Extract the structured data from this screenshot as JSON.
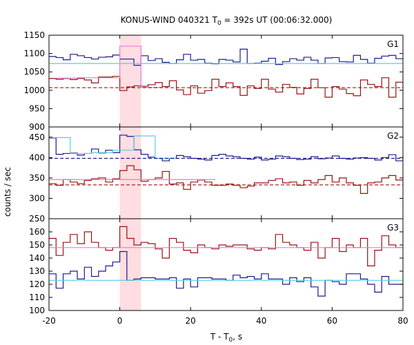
{
  "title": {
    "main": "KONUS-WIND 040321 T",
    "sub": "0",
    "rest": " = 392s UT (00:06:32.000)"
  },
  "ylabel": "counts / sec",
  "xlabel": {
    "main": "T - T",
    "sub": "0",
    "rest": ", s"
  },
  "colors": {
    "blue": "#1a1a8c",
    "red": "#9a1010",
    "cyan": "#5fc8e8",
    "pink": "#e878e0",
    "highlight": "#ffdde0"
  },
  "chart_data": {
    "type": "line",
    "xlim": [
      -20,
      80
    ],
    "xticks": [
      -20,
      0,
      20,
      40,
      60,
      80
    ],
    "highlight_interval": [
      0,
      6
    ],
    "panels": [
      {
        "name": "G1",
        "ylim": [
          900,
          1150
        ],
        "yticks": [
          900,
          950,
          1000,
          1050,
          1100,
          1150
        ],
        "series": [
          {
            "color": "blue",
            "step": 2,
            "x0": -20,
            "values": [
              1092,
              1089,
              1083,
              1098,
              1094,
              1089,
              1085,
              1090,
              1091,
              1096,
              1085,
              1085,
              1068,
              1094,
              1081,
              1086,
              1076,
              1073,
              1083,
              1098,
              1082,
              1084,
              1074,
              1072,
              1084,
              1082,
              1077,
              1112,
              1073,
              1074,
              1079,
              1087,
              1070,
              1078,
              1086,
              1082,
              1090,
              1082,
              1073,
              1088,
              1089,
              1078,
              1077,
              1095,
              1084,
              1074,
              1087,
              1093,
              1095,
              1086
            ]
          },
          {
            "color": "red",
            "step": 2,
            "x0": -20,
            "values": [
              1032,
              1030,
              1032,
              1029,
              1032,
              1028,
              1020,
              1036,
              1036,
              1038,
              999,
              1009,
              1012,
              1011,
              1015,
              1021,
              1010,
              1026,
              1001,
              988,
              1012,
              992,
              999,
              1030,
              1010,
              1020,
              1010,
              986,
              1012,
              1005,
              1030,
              1003,
              995,
              1016,
              1008,
              990,
              1005,
              1030,
              1007,
              981,
              1010,
              1003,
              991,
              985,
              1028,
              1016,
              1010,
              1034,
              981,
              1022
            ]
          },
          {
            "color": "pink",
            "step": 6,
            "x0": -18,
            "values": [
              1033,
              1034,
              1034,
              1120,
              1008
            ]
          },
          {
            "color": "cyan",
            "type": "hline",
            "y": 1073
          },
          {
            "color": "red",
            "type": "hline",
            "y": 1007,
            "dashed": true
          }
        ]
      },
      {
        "name": "G2",
        "ylim": [
          250,
          475
        ],
        "yticks": [
          250,
          300,
          350,
          400,
          450
        ],
        "series": [
          {
            "color": "blue",
            "step": 2,
            "x0": -20,
            "values": [
              448,
              408,
              410,
              411,
              406,
              410,
              421,
              411,
              418,
              412,
              455,
              452,
              419,
              408,
              401,
              398,
              392,
              398,
              405,
              402,
              398,
              396,
              394,
              405,
              408,
              404,
              402,
              398,
              396,
              401,
              394,
              396,
              404,
              402,
              398,
              395,
              396,
              402,
              397,
              399,
              404,
              398,
              396,
              399,
              400,
              398,
              394,
              400,
              407,
              392
            ]
          },
          {
            "color": "cyan",
            "step": 6,
            "x0": -20,
            "values": [
              449,
              410,
              412,
              418,
              453,
              398
            ]
          },
          {
            "color": "red",
            "step": 2,
            "x0": -20,
            "values": [
              336,
              332,
              346,
              340,
              336,
              344,
              348,
              350,
              340,
              348,
              368,
              380,
              370,
              342,
              346,
              350,
              366,
              335,
              338,
              322,
              340,
              345,
              340,
              332,
              332,
              335,
              332,
              326,
              330,
              338,
              338,
              344,
              348,
              338,
              340,
              332,
              344,
              338,
              346,
              356,
              340,
              350,
              338,
              332,
              312,
              338,
              340,
              350,
              356,
              345
            ]
          },
          {
            "color": "pink",
            "type": "hline",
            "y": 346,
            "x_end": 27
          },
          {
            "color": "blue",
            "type": "hline",
            "y": 398,
            "dashed": true
          },
          {
            "color": "red",
            "type": "hline",
            "y": 333,
            "dashed": true
          }
        ]
      },
      {
        "name": "G3",
        "ylim": [
          100,
          170
        ],
        "yticks": [
          100,
          110,
          120,
          130,
          140,
          150,
          160
        ],
        "series": [
          {
            "color": "red",
            "step": 2,
            "x0": -20,
            "values": [
              155,
              142,
              152,
              158,
              151,
              160,
              152,
              148,
              146,
              148,
              164,
              155,
              150,
              152,
              151,
              147,
              140,
              155,
              152,
              146,
              144,
              150,
              148,
              147,
              150,
              149,
              150,
              150,
              147,
              146,
              148,
              147,
              158,
              152,
              150,
              148,
              146,
              152,
              140,
              148,
              155,
              145,
              150,
              148,
              155,
              134,
              146,
              157,
              150,
              148
            ]
          },
          {
            "color": "blue",
            "step": 2,
            "x0": -20,
            "values": [
              128,
              117,
              128,
              130,
              124,
              133,
              126,
              130,
              134,
              137,
              145,
              123,
              124,
              125,
              125,
              124,
              124,
              125,
              117,
              124,
              118,
              125,
              125,
              124,
              124,
              123,
              127,
              125,
              126,
              124,
              128,
              124,
              124,
              120,
              125,
              122,
              125,
              118,
              111,
              123,
              122,
              120,
              128,
              128,
              124,
              120,
              114,
              126,
              120,
              120
            ]
          },
          {
            "color": "pink",
            "type": "hline",
            "y": 148
          },
          {
            "color": "cyan",
            "type": "hline",
            "y": 123
          }
        ]
      }
    ]
  }
}
